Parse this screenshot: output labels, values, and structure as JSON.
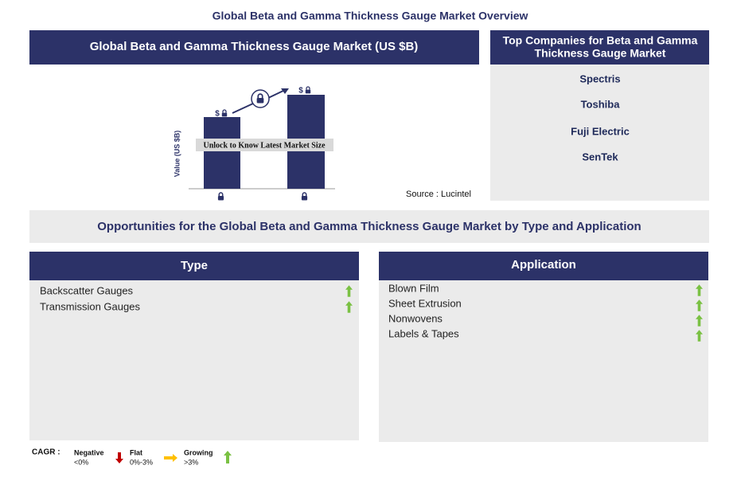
{
  "title": "Global Beta and Gamma Thickness Gauge Market Overview",
  "market_chart": {
    "title": "Global Beta and Gamma Thickness Gauge Market (US $B)",
    "y_axis_label": "Value (US $B)",
    "bar_labels": [
      "$",
      "$"
    ],
    "banner": "Unlock to Know Latest Market Size",
    "source": "Source : Lucintel"
  },
  "top_companies": {
    "title": [
      "Top Companies for Beta and Gamma",
      "Thickness Gauge Market"
    ],
    "items": [
      "Spectris",
      "Toshiba",
      "Fuji Electric",
      "SenTek"
    ]
  },
  "opportunities": {
    "title": "Opportunities for the Global Beta and Gamma Thickness Gauge Market by Type and Application",
    "type": {
      "title": "Type",
      "items": [
        "Backscatter Gauges",
        "Transmission Gauges"
      ]
    },
    "application": {
      "title": "Application",
      "items": [
        "Blown Film",
        "Sheet Extrusion",
        "Nonwovens",
        "Labels & Tapes"
      ]
    }
  },
  "legend": {
    "label": "CAGR :",
    "entries": [
      {
        "name": "Negative",
        "range": "<0%"
      },
      {
        "name": "Flat",
        "range": "0%-3%"
      },
      {
        "name": "Growing",
        "range": ">3%"
      }
    ]
  }
}
